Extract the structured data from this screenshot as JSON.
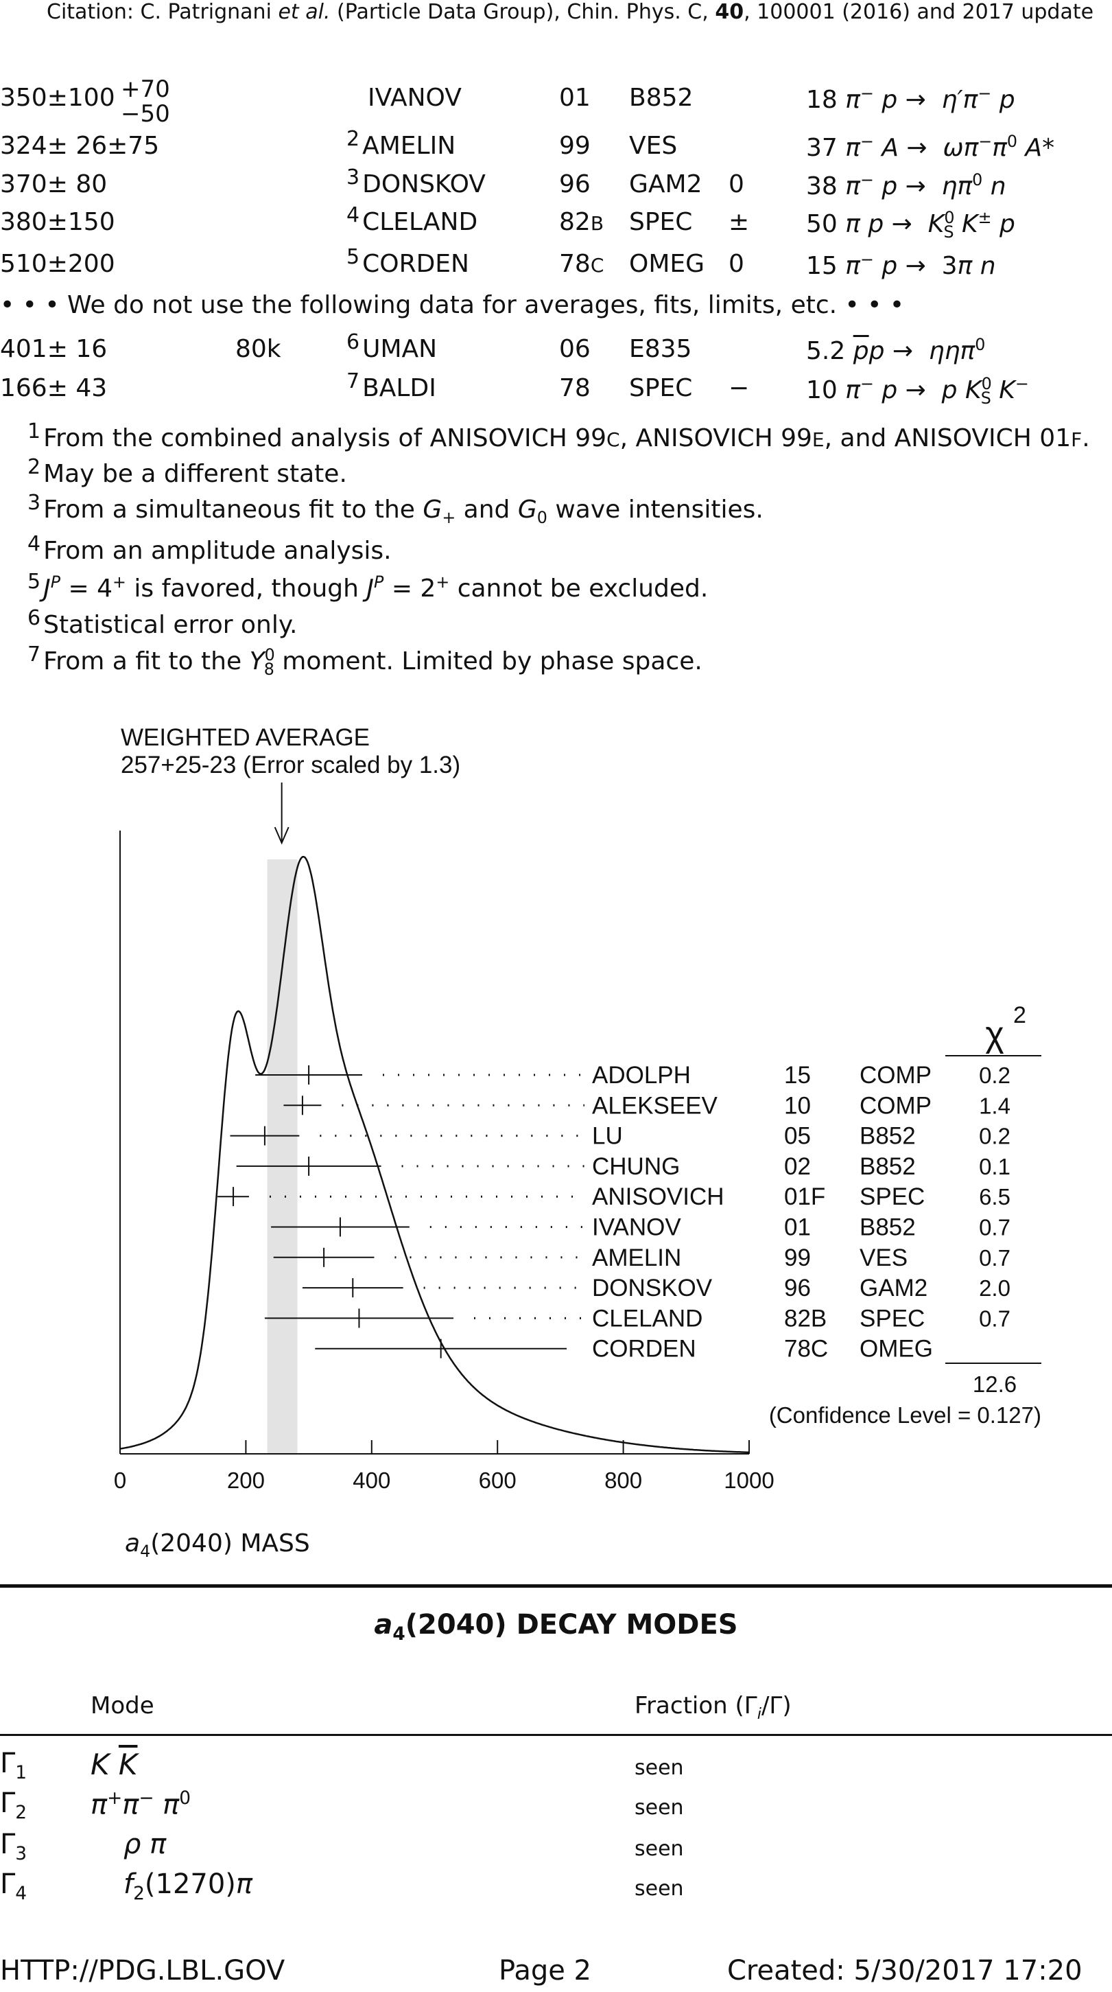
{
  "citation": "Citation: C. Patrignani et al. (Particle Data Group), Chin. Phys. C, 40, 100001 (2016) and 2017 update",
  "measurements": [
    {
      "value": "350",
      "err": "±100",
      "err_up": "+70",
      "err_dn": "−50",
      "evts": "",
      "note": "",
      "author": "IVANOV",
      "year": "01",
      "tecn": "B852",
      "chg": "",
      "comment": "18 π⁻ p → η′π⁻ p"
    },
    {
      "value": "324",
      "err": "± 26±75",
      "evts": "",
      "note": "2",
      "author": "AMELIN",
      "year": "99",
      "tecn": "VES",
      "chg": "",
      "comment": "37 π⁻ A → ω π⁻ π⁰ A*"
    },
    {
      "value": "370",
      "err": "± 80",
      "evts": "",
      "note": "3",
      "author": "DONSKOV",
      "year": "96",
      "tecn": "GAM2",
      "chg": "0",
      "comment": "38 π⁻ p → η π⁰ n"
    },
    {
      "value": "380",
      "err": "±150",
      "evts": "",
      "note": "4",
      "author": "CLELAND",
      "year": "82B",
      "tecn": "SPEC",
      "chg": "±",
      "comment": "50 π p → K⁰S K± p"
    },
    {
      "value": "510",
      "err": "±200",
      "evts": "",
      "note": "5",
      "author": "CORDEN",
      "year": "78C",
      "tecn": "OMEG",
      "chg": "0",
      "comment": "15 π⁻ p → 3π n"
    }
  ],
  "unused_note": "• • • We do not use the following data for averages, fits, limits, etc. • • •",
  "unused": [
    {
      "value": "401",
      "err": "± 16",
      "evts": "80k",
      "note": "6",
      "author": "UMAN",
      "year": "06",
      "tecn": "E835",
      "chg": "",
      "comment": "5.2 p̄ p → η η π⁰"
    },
    {
      "value": "166",
      "err": "± 43",
      "evts": "",
      "note": "7",
      "author": "BALDI",
      "year": "78",
      "tecn": "SPEC",
      "chg": "−",
      "comment": "10 π⁻ p → p K⁰S K⁻"
    }
  ],
  "footnotes": [
    {
      "n": "1",
      "text": "From the combined analysis of ANISOVICH 99C, ANISOVICH 99E, and ANISOVICH 01F."
    },
    {
      "n": "2",
      "text": "May be a different state."
    },
    {
      "n": "3",
      "text": "From a simultaneous fit to the G+ and G0 wave intensities."
    },
    {
      "n": "4",
      "text": "From an amplitude analysis."
    },
    {
      "n": "5",
      "text": "JP = 4+ is favored, though JP = 2+ cannot be excluded."
    },
    {
      "n": "6",
      "text": "Statistical error only."
    },
    {
      "n": "7",
      "text": "From a fit to the Y08 moment. Limited by phase space."
    }
  ],
  "chart_data": {
    "type": "ideogram",
    "title": "WEIGHTED AVERAGE",
    "subtitle": "257+25-23 (Error scaled by 1.3)",
    "average": 257,
    "avg_err_up": 25,
    "avg_err_dn": 23,
    "xlim": [
      0,
      1000
    ],
    "xticks": [
      "0",
      "200",
      "400",
      "600",
      "800",
      "1000"
    ],
    "xlabel": "a4(2040) MASS",
    "chi2_label": "χ2",
    "rows": [
      {
        "author": "ADOLPH",
        "year": "15",
        "tecn": "COMP",
        "chi2": "0.2",
        "value": 300,
        "err": 85
      },
      {
        "author": "ALEKSEEV",
        "year": "10",
        "tecn": "COMP",
        "chi2": "1.4",
        "value": 290,
        "err": 30
      },
      {
        "author": "LU",
        "year": "05",
        "tecn": "B852",
        "chi2": "0.2",
        "value": 230,
        "err": 55
      },
      {
        "author": "CHUNG",
        "year": "02",
        "tecn": "B852",
        "chi2": "0.1",
        "value": 300,
        "err": 115
      },
      {
        "author": "ANISOVICH",
        "year": "01F",
        "tecn": "SPEC",
        "chi2": "6.5",
        "value": 180,
        "err": 25
      },
      {
        "author": "IVANOV",
        "year": "01",
        "tecn": "B852",
        "chi2": "0.7",
        "value": 350,
        "err": 110
      },
      {
        "author": "AMELIN",
        "year": "99",
        "tecn": "VES",
        "chi2": "0.7",
        "value": 324,
        "err": 80
      },
      {
        "author": "DONSKOV",
        "year": "96",
        "tecn": "GAM2",
        "chi2": "2.0",
        "value": 370,
        "err": 80
      },
      {
        "author": "CLELAND",
        "year": "82B",
        "tecn": "SPEC",
        "chi2": "0.7",
        "value": 380,
        "err": 150
      },
      {
        "author": "CORDEN",
        "year": "78C",
        "tecn": "OMEG",
        "chi2": "",
        "value": 510,
        "err": 200
      }
    ],
    "chi2_total": "12.6",
    "confidence": "(Confidence Level = 0.127)"
  },
  "decay_title": "a4(2040) DECAY MODES",
  "decay_headers": {
    "mode": "Mode",
    "fraction": "Fraction (Γi/Γ)"
  },
  "decays": [
    {
      "id": "Γ1",
      "mode": "K K̄",
      "fraction": "seen"
    },
    {
      "id": "Γ2",
      "mode": "π+ π− π0",
      "fraction": "seen"
    },
    {
      "id": "Γ3",
      "mode": "ρ π",
      "fraction": "seen"
    },
    {
      "id": "Γ4",
      "mode": "f2(1270) π",
      "fraction": "seen"
    }
  ],
  "footer": {
    "left": "HTTP://PDG.LBL.GOV",
    "center": "Page 2",
    "right": "Created: 5/30/2017 17:20"
  }
}
